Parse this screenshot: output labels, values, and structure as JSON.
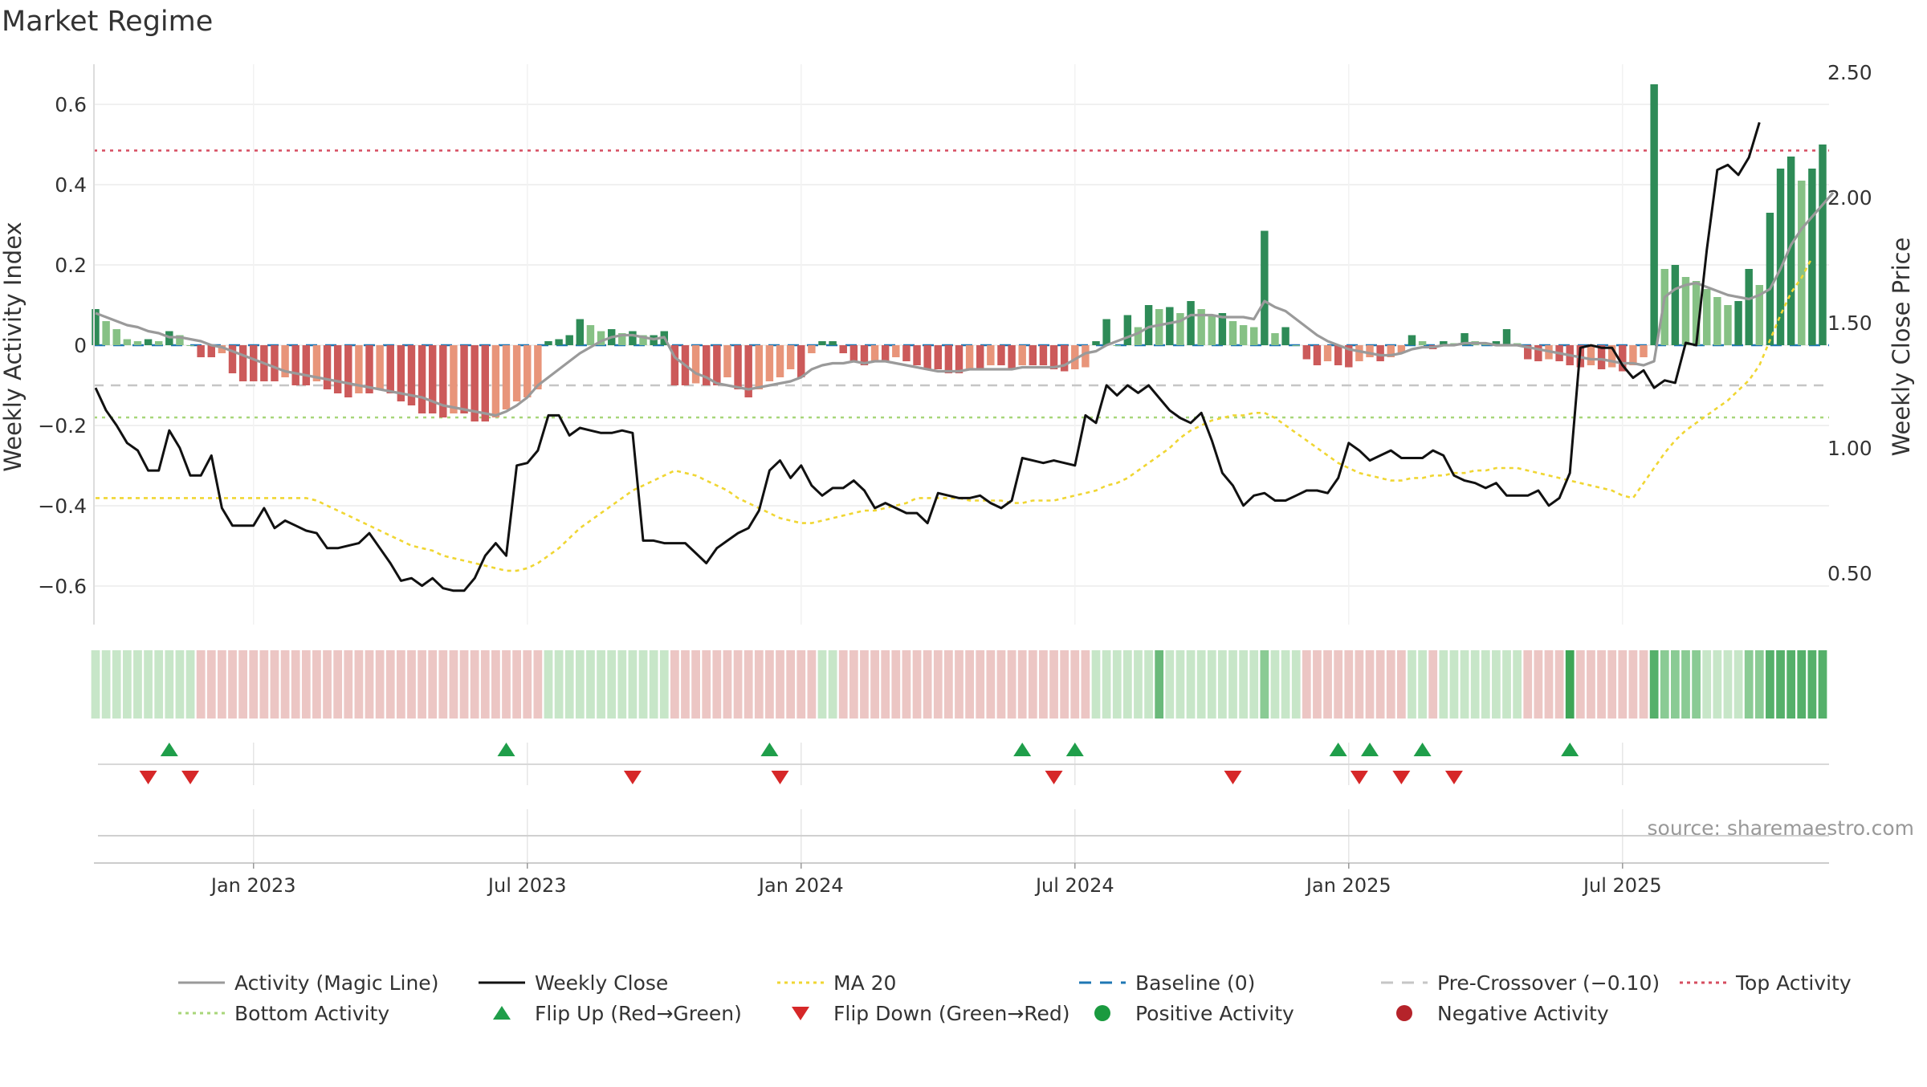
{
  "chart_data": {
    "type": "bar",
    "title": "Market Regime",
    "ylabel_left": "Weekly Activity Index",
    "ylabel_right": "Weekly Close Price",
    "source": "source: sharemaestro.com",
    "ylim_left": [
      -0.7,
      0.7
    ],
    "yticks_left": [
      {
        "value": 0.6,
        "label": "0.6"
      },
      {
        "value": 0.4,
        "label": "0.4"
      },
      {
        "value": 0.2,
        "label": "0.2"
      },
      {
        "value": 0,
        "label": "0"
      },
      {
        "value": -0.2,
        "label": "−0.2"
      },
      {
        "value": -0.4,
        "label": "−0.4"
      },
      {
        "value": -0.6,
        "label": "−0.6"
      }
    ],
    "ylim_right": [
      0.24,
      2.5
    ],
    "yticks_right": [
      {
        "value": 2.5,
        "label": "2.50"
      },
      {
        "value": 2.0,
        "label": "2.00"
      },
      {
        "value": 1.5,
        "label": "1.50"
      },
      {
        "value": 1.0,
        "label": "1.00"
      },
      {
        "value": 0.5,
        "label": "0.50"
      }
    ],
    "x_ticks": [
      {
        "index": 15,
        "label": "Jan 2023"
      },
      {
        "index": 41,
        "label": "Jul 2023"
      },
      {
        "index": 67,
        "label": "Jan 2024"
      },
      {
        "index": 93,
        "label": "Jul 2024"
      },
      {
        "index": 119,
        "label": "Jan 2025"
      },
      {
        "index": 145,
        "label": "Jul 2025"
      }
    ],
    "reference_lines": {
      "top_activity": 0.485,
      "pre_crossover": -0.1,
      "bottom_activity": -0.18,
      "baseline": 0
    },
    "activity": [
      0.09,
      0.06,
      0.04,
      0.015,
      0.01,
      0.015,
      0.01,
      0.035,
      0.025,
      0,
      -0.03,
      -0.03,
      -0.02,
      -0.07,
      -0.09,
      -0.09,
      -0.09,
      -0.09,
      -0.08,
      -0.1,
      -0.1,
      -0.09,
      -0.11,
      -0.12,
      -0.13,
      -0.12,
      -0.12,
      -0.11,
      -0.12,
      -0.14,
      -0.15,
      -0.17,
      -0.17,
      -0.18,
      -0.17,
      -0.17,
      -0.19,
      -0.19,
      -0.18,
      -0.16,
      -0.14,
      -0.13,
      -0.11,
      0.01,
      0.015,
      0.025,
      0.065,
      0.05,
      0.035,
      0.04,
      0.03,
      0.035,
      0.025,
      0.025,
      0.035,
      -0.1,
      -0.1,
      -0.095,
      -0.1,
      -0.1,
      -0.08,
      -0.11,
      -0.13,
      -0.11,
      -0.09,
      -0.08,
      -0.06,
      -0.08,
      -0.02,
      0.01,
      0.01,
      -0.02,
      -0.04,
      -0.05,
      -0.04,
      -0.04,
      -0.03,
      -0.04,
      -0.05,
      -0.06,
      -0.06,
      -0.07,
      -0.07,
      -0.06,
      -0.06,
      -0.05,
      -0.05,
      -0.06,
      -0.05,
      -0.05,
      -0.05,
      -0.06,
      -0.065,
      -0.06,
      -0.055,
      0.01,
      0.065,
      0,
      0.075,
      0.045,
      0.1,
      0.09,
      0.095,
      0.08,
      0.11,
      0.09,
      0.075,
      0.08,
      0.06,
      0.05,
      0.045,
      0.285,
      0.03,
      0.045,
      0,
      -0.035,
      -0.05,
      -0.04,
      -0.05,
      -0.055,
      -0.04,
      -0.03,
      -0.04,
      -0.03,
      -0.02,
      0.025,
      0.01,
      -0.01,
      0.01,
      0.005,
      0.03,
      0.01,
      0.005,
      0.01,
      0.04,
      0.005,
      -0.035,
      -0.04,
      -0.035,
      -0.04,
      -0.05,
      -0.055,
      -0.05,
      -0.06,
      -0.055,
      -0.065,
      -0.05,
      -0.03,
      0.65,
      0.19,
      0.2,
      0.17,
      0.16,
      0.14,
      0.12,
      0.1,
      0.11,
      0.19,
      0.15,
      0.33,
      0.44,
      0.47,
      0.41,
      0.44,
      0.5
    ],
    "magic_line": [
      0.08,
      0.07,
      0.06,
      0.05,
      0.045,
      0.035,
      0.03,
      0.02,
      0.02,
      0.015,
      0.01,
      0,
      -0.005,
      -0.015,
      -0.025,
      -0.035,
      -0.045,
      -0.055,
      -0.065,
      -0.07,
      -0.075,
      -0.08,
      -0.085,
      -0.09,
      -0.095,
      -0.1,
      -0.105,
      -0.11,
      -0.115,
      -0.12,
      -0.125,
      -0.13,
      -0.14,
      -0.15,
      -0.155,
      -0.16,
      -0.165,
      -0.17,
      -0.175,
      -0.165,
      -0.15,
      -0.13,
      -0.1,
      -0.08,
      -0.06,
      -0.04,
      -0.02,
      -0.005,
      0.01,
      0.02,
      0.025,
      0.025,
      0.02,
      0.015,
      0.02,
      -0.03,
      -0.05,
      -0.07,
      -0.08,
      -0.095,
      -0.1,
      -0.105,
      -0.11,
      -0.105,
      -0.1,
      -0.095,
      -0.09,
      -0.08,
      -0.06,
      -0.05,
      -0.045,
      -0.045,
      -0.04,
      -0.045,
      -0.04,
      -0.04,
      -0.045,
      -0.05,
      -0.055,
      -0.06,
      -0.065,
      -0.065,
      -0.065,
      -0.06,
      -0.06,
      -0.06,
      -0.06,
      -0.06,
      -0.055,
      -0.055,
      -0.055,
      -0.055,
      -0.05,
      -0.035,
      -0.02,
      -0.015,
      0,
      0.01,
      0.02,
      0.03,
      0.045,
      0.05,
      0.055,
      0.06,
      0.075,
      0.075,
      0.075,
      0.07,
      0.07,
      0.07,
      0.065,
      0.11,
      0.095,
      0.085,
      0.065,
      0.045,
      0.025,
      0.01,
      0,
      -0.01,
      -0.015,
      -0.02,
      -0.025,
      -0.025,
      -0.02,
      -0.01,
      -0.005,
      -0.005,
      0,
      0,
      0.005,
      0.005,
      0.005,
      0,
      0,
      0,
      -0.005,
      -0.01,
      -0.015,
      -0.02,
      -0.025,
      -0.03,
      -0.035,
      -0.035,
      -0.04,
      -0.045,
      -0.045,
      -0.05,
      -0.04,
      0.12,
      0.14,
      0.15,
      0.155,
      0.145,
      0.135,
      0.125,
      0.12,
      0.115,
      0.125,
      0.14,
      0.19,
      0.25,
      0.29,
      0.32,
      0.35,
      0.38
    ],
    "weekly_close": [
      1.24,
      1.15,
      1.09,
      1.02,
      0.99,
      0.91,
      0.91,
      1.07,
      1.0,
      0.89,
      0.89,
      0.97,
      0.76,
      0.69,
      0.69,
      0.69,
      0.76,
      0.68,
      0.71,
      0.69,
      0.67,
      0.66,
      0.6,
      0.6,
      0.61,
      0.62,
      0.66,
      0.6,
      0.54,
      0.47,
      0.48,
      0.45,
      0.48,
      0.44,
      0.43,
      0.43,
      0.48,
      0.57,
      0.62,
      0.57,
      0.93,
      0.94,
      0.99,
      1.13,
      1.13,
      1.05,
      1.08,
      1.07,
      1.06,
      1.06,
      1.07,
      1.06,
      0.63,
      0.63,
      0.62,
      0.62,
      0.62,
      0.58,
      0.54,
      0.6,
      0.63,
      0.66,
      0.68,
      0.75,
      0.91,
      0.95,
      0.88,
      0.93,
      0.85,
      0.81,
      0.84,
      0.84,
      0.87,
      0.83,
      0.76,
      0.78,
      0.76,
      0.74,
      0.74,
      0.7,
      0.82,
      0.81,
      0.8,
      0.8,
      0.81,
      0.78,
      0.76,
      0.79,
      0.96,
      0.95,
      0.94,
      0.95,
      0.94,
      0.93,
      1.13,
      1.1,
      1.25,
      1.21,
      1.25,
      1.22,
      1.25,
      1.2,
      1.15,
      1.12,
      1.1,
      1.14,
      1.03,
      0.9,
      0.85,
      0.77,
      0.81,
      0.82,
      0.79,
      0.79,
      0.81,
      0.83,
      0.83,
      0.82,
      0.88,
      1.02,
      0.99,
      0.95,
      0.97,
      0.99,
      0.96,
      0.96,
      0.96,
      0.99,
      0.97,
      0.89,
      0.87,
      0.86,
      0.84,
      0.86,
      0.81,
      0.81,
      0.81,
      0.83,
      0.77,
      0.8,
      0.9,
      1.4,
      1.41,
      1.4,
      1.4,
      1.33,
      1.28,
      1.31,
      1.24,
      1.27,
      1.26,
      1.42,
      1.41,
      1.79,
      2.11,
      2.13,
      2.09,
      2.16,
      2.3
    ],
    "ma20": [
      0.8,
      0.8,
      0.8,
      0.8,
      0.8,
      0.8,
      0.8,
      0.8,
      0.8,
      0.8,
      0.8,
      0.8,
      0.8,
      0.8,
      0.8,
      0.8,
      0.8,
      0.8,
      0.8,
      0.8,
      0.8,
      0.79,
      0.77,
      0.75,
      0.73,
      0.71,
      0.69,
      0.67,
      0.65,
      0.63,
      0.61,
      0.6,
      0.59,
      0.57,
      0.56,
      0.55,
      0.54,
      0.53,
      0.52,
      0.51,
      0.51,
      0.52,
      0.54,
      0.57,
      0.6,
      0.64,
      0.68,
      0.71,
      0.74,
      0.77,
      0.8,
      0.83,
      0.85,
      0.87,
      0.89,
      0.91,
      0.9,
      0.89,
      0.87,
      0.85,
      0.83,
      0.8,
      0.78,
      0.76,
      0.74,
      0.72,
      0.71,
      0.7,
      0.7,
      0.71,
      0.72,
      0.73,
      0.74,
      0.75,
      0.75,
      0.76,
      0.77,
      0.78,
      0.8,
      0.8,
      0.8,
      0.8,
      0.8,
      0.79,
      0.79,
      0.79,
      0.79,
      0.78,
      0.78,
      0.79,
      0.79,
      0.79,
      0.8,
      0.81,
      0.82,
      0.83,
      0.85,
      0.86,
      0.88,
      0.91,
      0.94,
      0.97,
      1.0,
      1.04,
      1.07,
      1.09,
      1.11,
      1.12,
      1.13,
      1.13,
      1.14,
      1.14,
      1.12,
      1.09,
      1.06,
      1.03,
      1.0,
      0.97,
      0.94,
      0.92,
      0.9,
      0.89,
      0.88,
      0.87,
      0.87,
      0.88,
      0.88,
      0.89,
      0.89,
      0.9,
      0.9,
      0.91,
      0.91,
      0.92,
      0.92,
      0.92,
      0.91,
      0.9,
      0.89,
      0.88,
      0.87,
      0.86,
      0.85,
      0.84,
      0.83,
      0.81,
      0.8,
      0.86,
      0.92,
      0.98,
      1.03,
      1.07,
      1.1,
      1.13,
      1.16,
      1.19,
      1.23,
      1.27,
      1.33,
      1.43,
      1.53,
      1.62,
      1.68,
      1.76
    ],
    "flips_up": [
      7,
      39,
      64,
      88,
      93,
      118,
      121,
      126,
      140
    ],
    "flips_down": [
      5,
      9,
      51,
      65,
      91,
      108,
      120,
      124,
      129
    ],
    "legend": [
      {
        "label": "Activity (Magic Line)",
        "symbol": "line",
        "color": "#9a9a9a"
      },
      {
        "label": "Weekly Close",
        "symbol": "line",
        "color": "#111111"
      },
      {
        "label": "MA 20",
        "symbol": "dotted",
        "color": "#f0d633"
      },
      {
        "label": "Baseline (0)",
        "symbol": "dashed",
        "color": "#1f77b4"
      },
      {
        "label": "Pre-Crossover (−0.10)",
        "symbol": "dashed",
        "color": "#c6c6c6"
      },
      {
        "label": "Top Activity",
        "symbol": "dotted",
        "color": "#d64d60"
      },
      {
        "label": "Bottom Activity",
        "symbol": "dotted",
        "color": "#a8d67a"
      },
      {
        "label": "Flip Up (Red→Green)",
        "symbol": "triangle-up",
        "color": "#1f9e4a"
      },
      {
        "label": "Flip Down (Green→Red)",
        "symbol": "triangle-down",
        "color": "#d62728"
      },
      {
        "label": "Positive Activity",
        "symbol": "circle",
        "color": "#1a9a3f"
      },
      {
        "label": "Negative Activity",
        "symbol": "circle",
        "color": "#b5232a"
      }
    ],
    "colors": {
      "pos_strong": "#2e8b57",
      "pos_light": "#86c185",
      "neg_strong": "#cc5a5a",
      "neg_light": "#e8957a",
      "strip_pos": "#c7e6c8",
      "strip_pos_strong": "#55b06a",
      "strip_neg": "#ecc6c4",
      "grid": "#ececec"
    }
  }
}
